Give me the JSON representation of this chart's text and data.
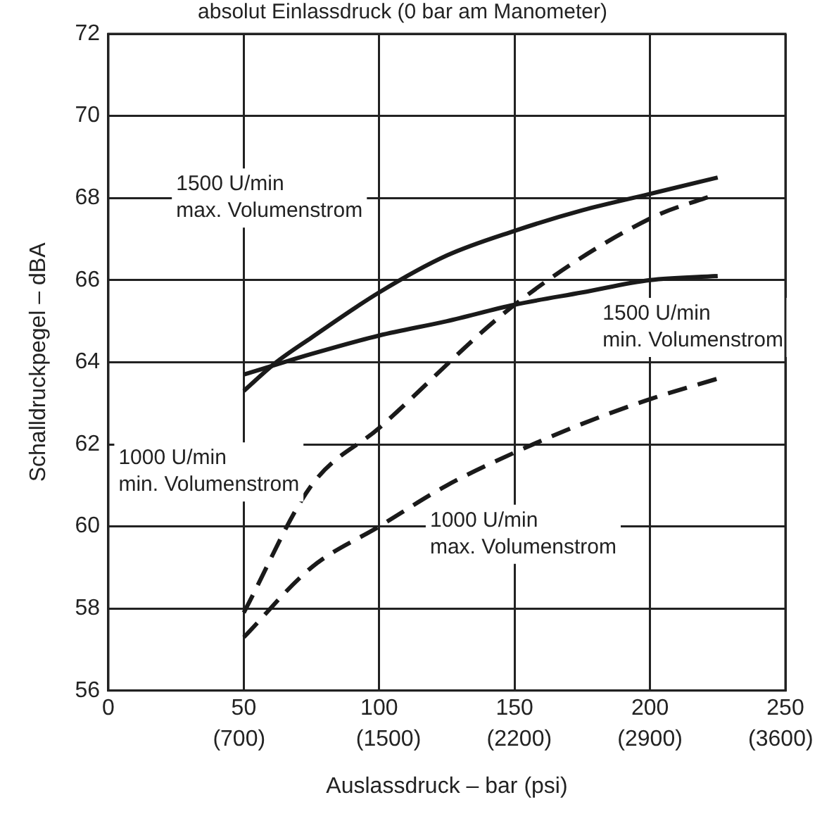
{
  "chart_data": {
    "type": "line",
    "title": "absolut Einlassdruck (0 bar am Manometer)",
    "xlabel": "Auslassdruck – bar (psi)",
    "ylabel": "Schalldruckpegel – dBA",
    "xlim": [
      0,
      250
    ],
    "xticks": [
      0,
      50,
      100,
      150,
      200,
      250
    ],
    "x2lim": [
      0,
      3625
    ],
    "x2ticks": [
      {
        "value": 700,
        "label": "(700)"
      },
      {
        "value": 1500,
        "label": "(1500)"
      },
      {
        "value": 2200,
        "label": "(2200)"
      },
      {
        "value": 2900,
        "label": "(2900)"
      },
      {
        "value": 3600,
        "label": "(3600)"
      }
    ],
    "ylim": [
      56,
      72
    ],
    "yticks": [
      56,
      58,
      60,
      62,
      64,
      66,
      68,
      70,
      72
    ],
    "grid": true,
    "legend": false,
    "marker": "none",
    "series": [
      {
        "color": "#1a1a1a",
        "line_style": "solid",
        "x": [
          50,
          62,
          75,
          100,
          125,
          150,
          175,
          200,
          225
        ],
        "values": [
          63.3,
          64.0,
          64.6,
          65.7,
          66.6,
          67.2,
          67.7,
          68.1,
          68.5
        ]
      },
      {
        "color": "#1a1a1a",
        "line_style": "solid",
        "x": [
          50,
          75,
          100,
          125,
          150,
          175,
          200,
          225
        ],
        "values": [
          63.7,
          64.2,
          64.65,
          65.0,
          65.4,
          65.7,
          66.0,
          66.1
        ]
      },
      {
        "color": "#1a1a1a",
        "line_style": "dashed",
        "x": [
          50,
          75,
          100,
          150,
          200,
          225
        ],
        "values": [
          57.9,
          61.0,
          62.4,
          65.4,
          67.5,
          68.1
        ]
      },
      {
        "color": "#1a1a1a",
        "line_style": "dashed",
        "x": [
          50,
          75,
          100,
          125,
          150,
          175,
          200,
          225
        ],
        "values": [
          57.3,
          59.0,
          60.0,
          61.0,
          61.8,
          62.5,
          63.1,
          63.6
        ]
      }
    ],
    "annotations": [
      "1500 U/min\nmax. Volumenstrom",
      "1500 U/min\nmin. Volumenstrom",
      "1000 U/min\nmin. Volumenstrom",
      "1000 U/min\nmax. Volumenstrom"
    ]
  }
}
